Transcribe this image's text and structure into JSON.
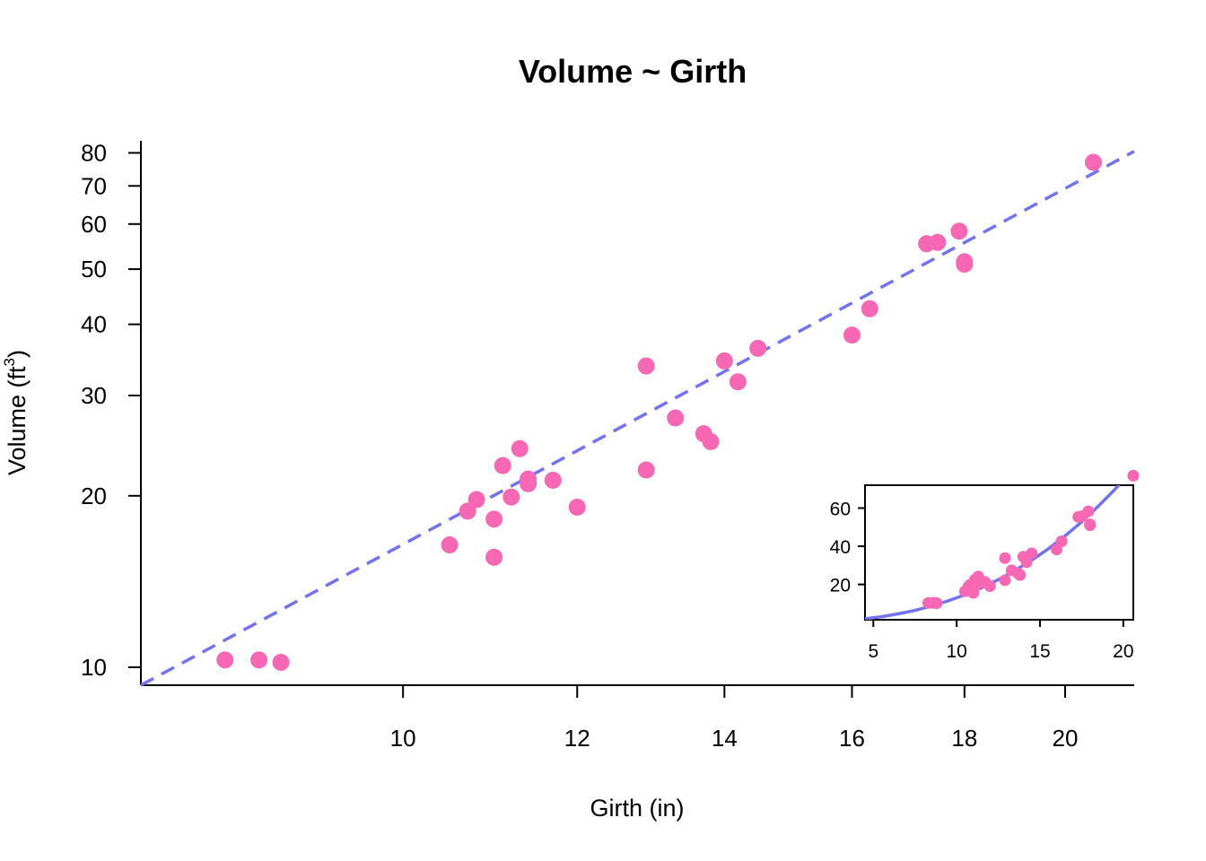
{
  "chart_data": [
    {
      "type": "scatter",
      "title": "Volume ~ Girth",
      "xlabel": "Girth (in)",
      "ylabel": "Volume (ft",
      "ylabel_sup": "3",
      "ylabel_close": ")",
      "x_scale": "log",
      "y_scale": "log",
      "xlim": [
        7.6,
        21.5
      ],
      "ylim": [
        9.3,
        84
      ],
      "x_ticks": [
        10,
        12,
        14,
        16,
        18,
        20
      ],
      "y_ticks": [
        10,
        20,
        30,
        40,
        50,
        60,
        70,
        80
      ],
      "grid": false,
      "points": {
        "x": [
          8.3,
          8.6,
          8.8,
          10.5,
          10.7,
          10.8,
          11.0,
          11.0,
          11.1,
          11.2,
          11.3,
          11.4,
          11.4,
          11.7,
          12.0,
          12.9,
          12.9,
          13.3,
          13.7,
          13.8,
          14.0,
          14.2,
          14.5,
          16.0,
          16.3,
          17.3,
          17.5,
          17.9,
          18.0,
          18.0,
          20.6
        ],
        "y": [
          10.3,
          10.3,
          10.2,
          16.4,
          18.8,
          19.7,
          15.6,
          18.2,
          22.6,
          19.9,
          24.2,
          21.0,
          21.4,
          21.3,
          19.1,
          22.2,
          33.8,
          27.4,
          25.7,
          24.9,
          34.5,
          31.7,
          36.3,
          38.3,
          42.6,
          55.4,
          55.7,
          58.3,
          51.5,
          51.0,
          77.0
        ]
      },
      "fit": {
        "style": "dashed",
        "x": [
          7.6,
          21.5
        ],
        "y": [
          9.3,
          80.5
        ]
      },
      "colors": {
        "points": "#f767b3",
        "fit": "#7373f2"
      }
    },
    {
      "type": "scatter",
      "placement": "inset-bottom-right",
      "xlim": [
        4.5,
        20.6
      ],
      "ylim": [
        1.5,
        72
      ],
      "x_ticks": [
        5,
        10,
        15,
        20
      ],
      "y_ticks": [
        20,
        40,
        60
      ],
      "fit": {
        "style": "solid",
        "x": [
          4.5,
          5.5,
          6.5,
          7.5,
          8.5,
          9.5,
          10.5,
          11.5,
          12.5,
          13.5,
          14.5,
          15.5,
          16.5,
          17.5,
          18.5,
          19.5,
          20.6
        ],
        "y": [
          2.0,
          3.1,
          4.6,
          6.4,
          8.7,
          11.4,
          14.6,
          18.3,
          22.5,
          27.3,
          32.7,
          38.7,
          45.4,
          52.8,
          61.0,
          69.9,
          80.5
        ]
      }
    }
  ]
}
